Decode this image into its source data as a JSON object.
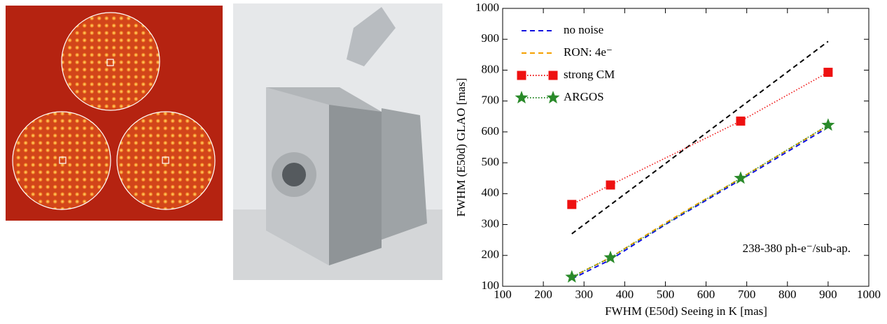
{
  "chart_data": {
    "type": "line",
    "xlabel": "FWHM (E50d) Seeing in K [mas]",
    "ylabel": "FWHM (E50d) GLAO [mas]",
    "annotation": "238-380 ph-e⁻/sub-ap.",
    "xlim": [
      100,
      1000
    ],
    "xticks": [
      100,
      200,
      300,
      400,
      500,
      600,
      700,
      800,
      900,
      1000
    ],
    "ylim": [
      100,
      1000
    ],
    "yticks": [
      100,
      200,
      300,
      400,
      500,
      600,
      700,
      800,
      900,
      1000
    ],
    "legend": "upper left",
    "series": [
      {
        "color": "#000000",
        "linestyle": "dashed",
        "marker": "none",
        "x": [
          270,
          900
        ],
        "values": [
          270,
          893
        ]
      },
      {
        "name": "no noise",
        "color": "#1010e0",
        "linestyle": "dashed",
        "marker": "none",
        "x": [
          270,
          365,
          500,
          685,
          900
        ],
        "values": [
          124,
          186,
          300,
          445,
          615
        ]
      },
      {
        "name": "RON: 4e⁻",
        "color": "#f5a000",
        "linestyle": "dashed",
        "marker": "none",
        "x": [
          270,
          365,
          500,
          685,
          900
        ],
        "values": [
          130,
          193,
          305,
          450,
          621
        ]
      },
      {
        "name": "strong CM",
        "color": "#ee1111",
        "linestyle": "dotted",
        "marker": "square",
        "x": [
          270,
          365,
          685,
          900
        ],
        "values": [
          365,
          428,
          635,
          793
        ]
      },
      {
        "name": "ARGOS",
        "color": "#2a8a2a",
        "linestyle": "dotted",
        "marker": "star",
        "x": [
          270,
          365,
          685,
          900
        ],
        "values": [
          130,
          193,
          450,
          622
        ]
      }
    ]
  }
}
